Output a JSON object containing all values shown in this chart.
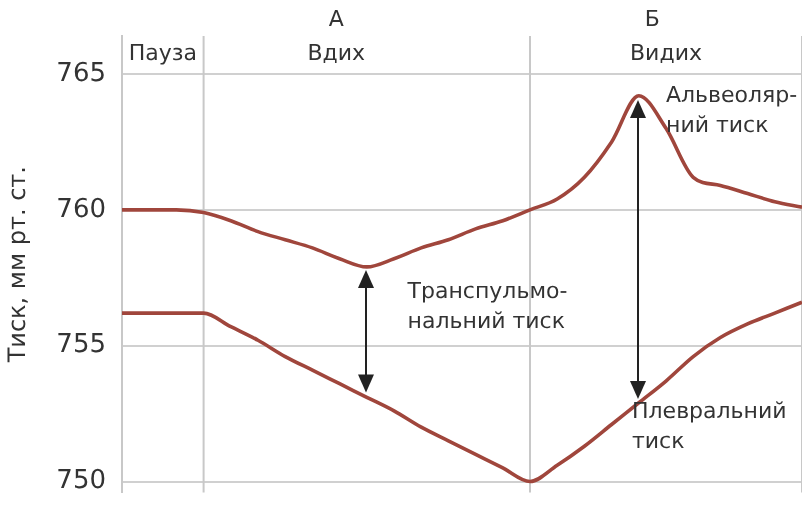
{
  "chart_data": {
    "type": "line",
    "ylabel": "Тиск, мм рт. ст.",
    "categories": [
      null,
      null,
      null,
      null,
      null,
      null,
      null,
      null,
      null,
      null,
      null,
      null,
      null,
      null,
      null,
      null,
      null,
      null,
      null,
      null,
      null,
      null,
      null,
      null,
      null,
      null
    ],
    "series": [
      {
        "color": "#a0463c",
        "values": [
          760,
          760,
          760,
          759.9,
          759.6,
          759.2,
          758.9,
          758.6,
          758.2,
          757.9,
          758.2,
          758.6,
          758.9,
          759.3,
          759.6,
          760,
          760.4,
          761.2,
          762.5,
          764.2,
          763,
          761.2,
          760.9,
          760.6,
          760.3,
          760.1
        ]
      },
      {
        "color": "#a0463c",
        "values": [
          756.2,
          756.2,
          756.2,
          756.2,
          755.7,
          755.2,
          754.6,
          754.1,
          753.6,
          753.1,
          752.6,
          752,
          751.5,
          751,
          750.5,
          750,
          750.6,
          751.3,
          752.1,
          752.9,
          753.7,
          754.6,
          755.3,
          755.8,
          756.2,
          756.6
        ]
      }
    ],
    "ylim": [
      749.6,
      766.4
    ],
    "yticks": [
      750,
      755,
      760,
      765
    ],
    "grid": true,
    "tick_labels": "y",
    "marker": "none",
    "line_style": "solid",
    "legend": false,
    "annotations": [
      "А",
      "Б",
      "Альвеоляр-\nний тиск",
      "Транспульмо-\nнальний тиск",
      "Плевральний\nтиск",
      "Пауза",
      "Вдих",
      "Видих"
    ]
  }
}
